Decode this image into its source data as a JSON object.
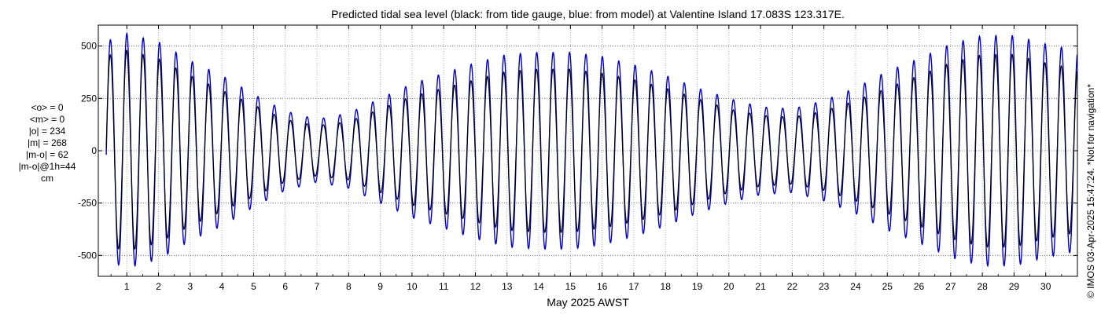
{
  "chart_data": {
    "type": "line",
    "title": "Predicted tidal sea level (black: from tide gauge, blue: from model) at Valentine Island 17.083S 123.317E.",
    "xlabel": "May 2025 AWST",
    "ylabel": "",
    "xlim": [
      0.1,
      31.0
    ],
    "ylim": [
      -600,
      600
    ],
    "xticks": [
      "1",
      "2",
      "3",
      "4",
      "5",
      "6",
      "7",
      "8",
      "9",
      "10",
      "11",
      "12",
      "13",
      "14",
      "15",
      "16",
      "17",
      "18",
      "19",
      "20",
      "21",
      "22",
      "23",
      "24",
      "25",
      "26",
      "27",
      "28",
      "29",
      "30"
    ],
    "yticks": [
      "500",
      "250",
      "0",
      "-250",
      "-500"
    ],
    "ytick_values": [
      500,
      250,
      0,
      -250,
      -500
    ],
    "grid": true,
    "amplitude_envelope": {
      "x": [
        0.3,
        1,
        2,
        3,
        4,
        5,
        6,
        7,
        8,
        9,
        10,
        11,
        12,
        13,
        14,
        15,
        16,
        17,
        18,
        19,
        20,
        21,
        22,
        23,
        24,
        25,
        26,
        27,
        28,
        29,
        30,
        31
      ],
      "model": [
        520,
        560,
        520,
        430,
        360,
        270,
        190,
        150,
        180,
        250,
        320,
        370,
        420,
        460,
        470,
        470,
        450,
        410,
        360,
        300,
        250,
        210,
        200,
        240,
        300,
        380,
        440,
        510,
        550,
        550,
        510,
        480
      ],
      "gauge": [
        450,
        480,
        440,
        360,
        290,
        220,
        150,
        120,
        140,
        200,
        260,
        300,
        340,
        380,
        390,
        390,
        370,
        340,
        300,
        250,
        200,
        170,
        160,
        190,
        240,
        300,
        360,
        420,
        460,
        460,
        420,
        390
      ]
    },
    "series": [
      {
        "name": "black: from tide gauge",
        "color": "#000000"
      },
      {
        "name": "blue: from model",
        "color": "#0000cc"
      }
    ]
  },
  "stats": {
    "mean_o": "<o> = 0",
    "mean_m": "<m> = 0",
    "abs_o": "|o| = 234",
    "abs_m": "|m| = 268",
    "abs_mo": "|m-o| = 62",
    "abs_mo_1h": "|m-o|@1h=44",
    "units": "cm"
  },
  "watermark": "© IMOS 03-Apr-2025 15:47:24. *Not for navigation*"
}
